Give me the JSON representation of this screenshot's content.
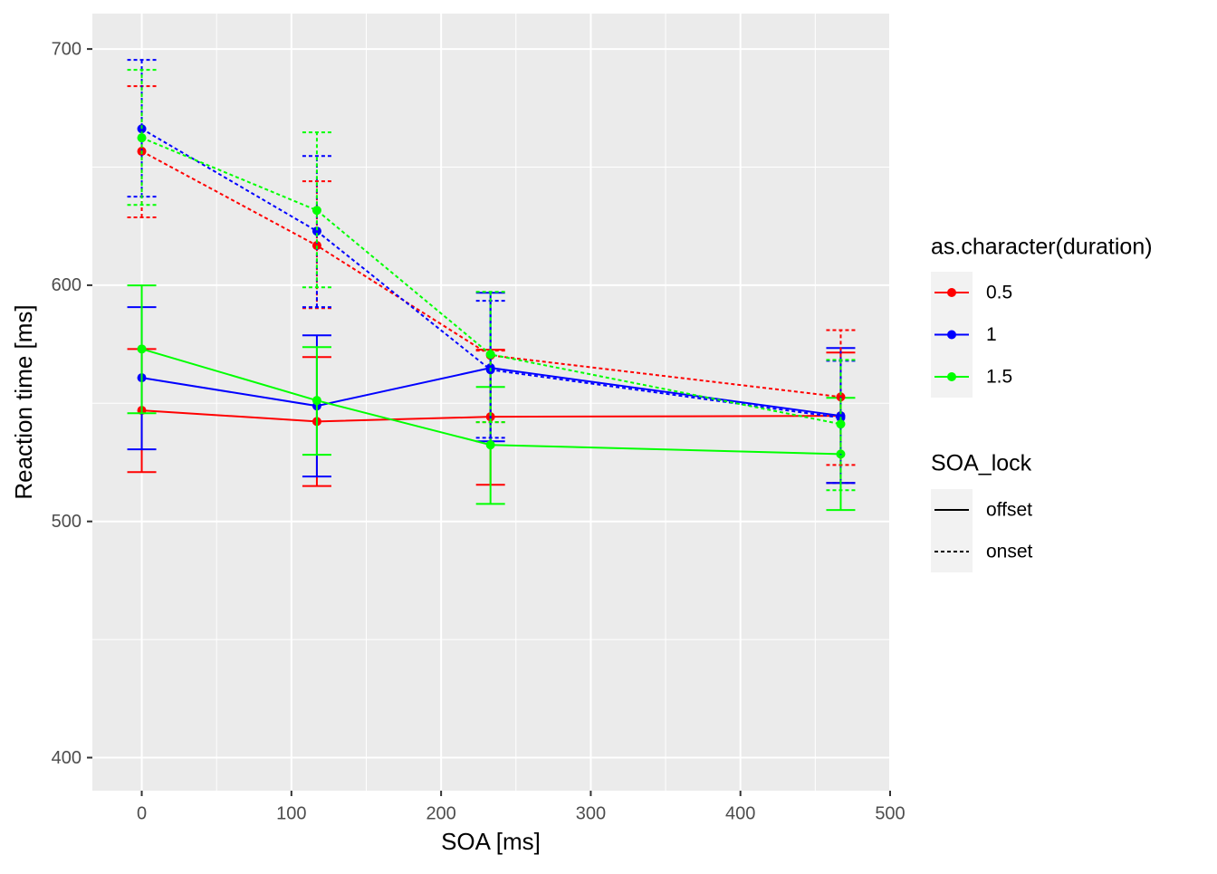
{
  "chart_data": {
    "type": "line",
    "xlabel": "SOA [ms]",
    "ylabel": "Reaction time [ms]",
    "x": [
      0,
      117,
      233,
      467
    ],
    "xlim": [
      -33,
      500
    ],
    "ylim": [
      386,
      715
    ],
    "xticks": [
      0,
      100,
      200,
      300,
      400,
      500
    ],
    "yticks": [
      400,
      500,
      600,
      700
    ],
    "x_minor_grid": [
      50,
      150,
      250,
      350,
      450
    ],
    "y_minor_grid": [
      450,
      550,
      650
    ],
    "grid": true,
    "legend_position": "right",
    "legends": [
      {
        "title": "as.character(duration)",
        "labels": [
          "0.5",
          "1",
          "1.5"
        ],
        "colors": [
          "#ff0000",
          "#0000ff",
          "#00ff00"
        ]
      },
      {
        "title": "SOA_lock",
        "labels": [
          "offset",
          "onset"
        ],
        "dashes": [
          "none",
          "4 3"
        ]
      }
    ],
    "series": [
      {
        "name": "0.5",
        "lock": "offset",
        "color": "#ff0000",
        "values": [
          547,
          542.3,
          544.3,
          544.7
        ],
        "error_low": [
          520.9,
          515,
          515.5,
          516.3
        ],
        "error_high": [
          573,
          569.6,
          572.7,
          571.5
        ]
      },
      {
        "name": "1",
        "lock": "offset",
        "color": "#0000ff",
        "values": [
          560.8,
          548.9,
          565,
          544.7
        ],
        "error_low": [
          530.5,
          519,
          533.9,
          516.3
        ],
        "error_high": [
          590.7,
          578.8,
          596.8,
          573.4
        ]
      },
      {
        "name": "1.5",
        "lock": "offset",
        "color": "#00ff00",
        "values": [
          573,
          551.2,
          532.4,
          528.5
        ],
        "error_low": [
          545.8,
          528.2,
          507.4,
          504.8
        ],
        "error_high": [
          599.9,
          573.8,
          556.9,
          552.3
        ]
      },
      {
        "name": "0.5",
        "lock": "onset",
        "color": "#ff0000",
        "values": [
          656.7,
          616.8,
          570.3,
          552.7
        ],
        "error_low": [
          628.7,
          590.3,
          542,
          523.9
        ],
        "error_high": [
          684.3,
          644,
          572.3,
          581
        ]
      },
      {
        "name": "1",
        "lock": "onset",
        "color": "#0000ff",
        "values": [
          666.2,
          622.9,
          564.2,
          543.9
        ],
        "error_low": [
          637.5,
          590.7,
          535.4,
          516.3
        ],
        "error_high": [
          695.4,
          654.7,
          593.4,
          568
        ]
      },
      {
        "name": "1.5",
        "lock": "onset",
        "color": "#00ff00",
        "values": [
          662.4,
          631.7,
          570.7,
          541.2
        ],
        "error_low": [
          634,
          599.1,
          542,
          513.2
        ],
        "error_high": [
          691.2,
          664.7,
          597.2,
          568.4
        ]
      }
    ]
  }
}
